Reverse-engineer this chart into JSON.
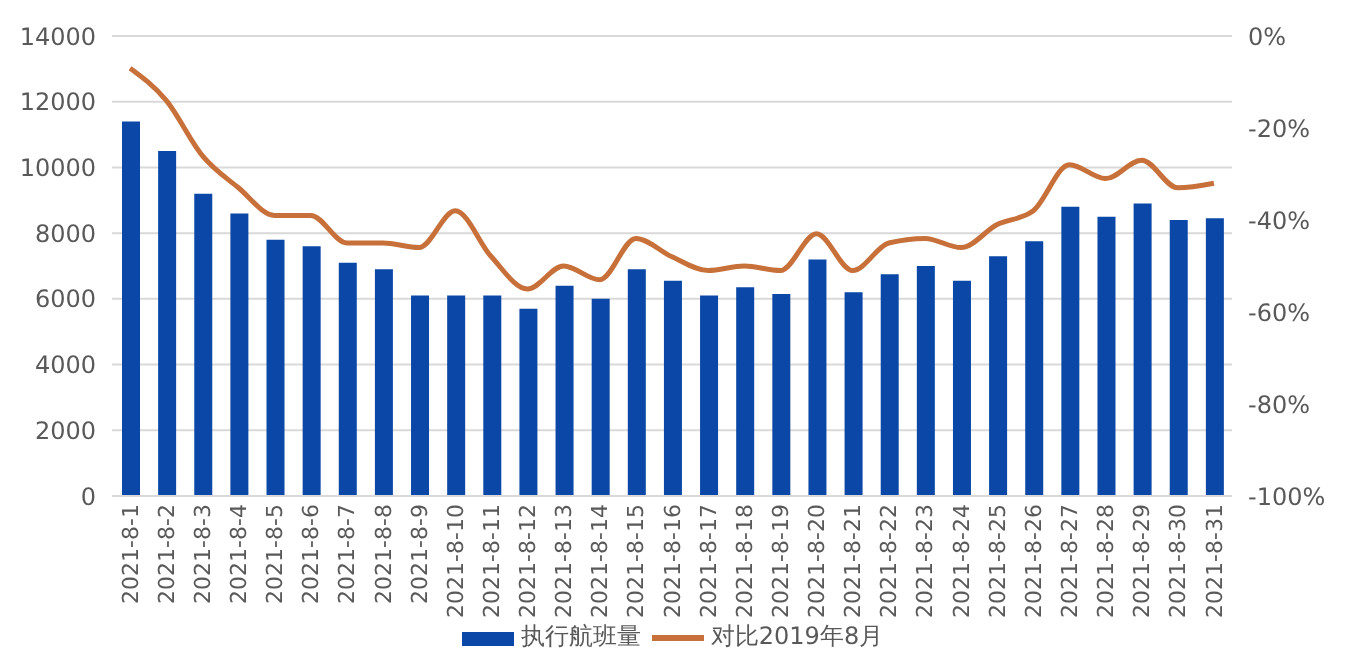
{
  "chart_data": {
    "type": "bar",
    "categories": [
      "2021-8-1",
      "2021-8-2",
      "2021-8-3",
      "2021-8-4",
      "2021-8-5",
      "2021-8-6",
      "2021-8-7",
      "2021-8-8",
      "2021-8-9",
      "2021-8-10",
      "2021-8-11",
      "2021-8-12",
      "2021-8-13",
      "2021-8-14",
      "2021-8-15",
      "2021-8-16",
      "2021-8-17",
      "2021-8-18",
      "2021-8-19",
      "2021-8-20",
      "2021-8-21",
      "2021-8-22",
      "2021-8-23",
      "2021-8-24",
      "2021-8-25",
      "2021-8-26",
      "2021-8-27",
      "2021-8-28",
      "2021-8-29",
      "2021-8-30",
      "2021-8-31"
    ],
    "series": [
      {
        "name": "执行航班量",
        "color": "#0a47a6",
        "values": [
          11400,
          10500,
          9200,
          8600,
          7800,
          7600,
          7100,
          6900,
          6100,
          6100,
          6100,
          5700,
          6400,
          6000,
          6900,
          6550,
          6100,
          6350,
          6150,
          7200,
          6200,
          6750,
          7000,
          6550,
          7300,
          7750,
          8800,
          8500,
          8900,
          8400,
          8450
        ]
      },
      {
        "name": "对比2019年8月",
        "type": "line",
        "axis": "y2",
        "color": "#c8703a",
        "values": [
          -7,
          -14,
          -26,
          -33,
          -39,
          -39,
          -45,
          -45,
          -46,
          -38,
          -48,
          -55,
          -50,
          -53,
          -44,
          -48,
          -51,
          -50,
          -51,
          -43,
          -51,
          -45,
          -44,
          -46,
          -41,
          -38,
          -28,
          -31,
          -27,
          -33,
          -32
        ]
      }
    ],
    "ylim": [
      0,
      14000
    ],
    "yticks": [
      0,
      2000,
      4000,
      6000,
      8000,
      10000,
      12000,
      14000
    ],
    "y2lim": [
      -100,
      0
    ],
    "y2ticks": [
      {
        "value": -100,
        "label": "-100%"
      },
      {
        "value": -80,
        "label": "-80%"
      },
      {
        "value": -60,
        "label": "-60%"
      },
      {
        "value": -40,
        "label": "-40%"
      },
      {
        "value": -20,
        "label": "-20%"
      },
      {
        "value": 0,
        "label": "0%"
      }
    ],
    "grid": "y",
    "legend": "bottom",
    "marker": "none",
    "line_style": "solid"
  }
}
